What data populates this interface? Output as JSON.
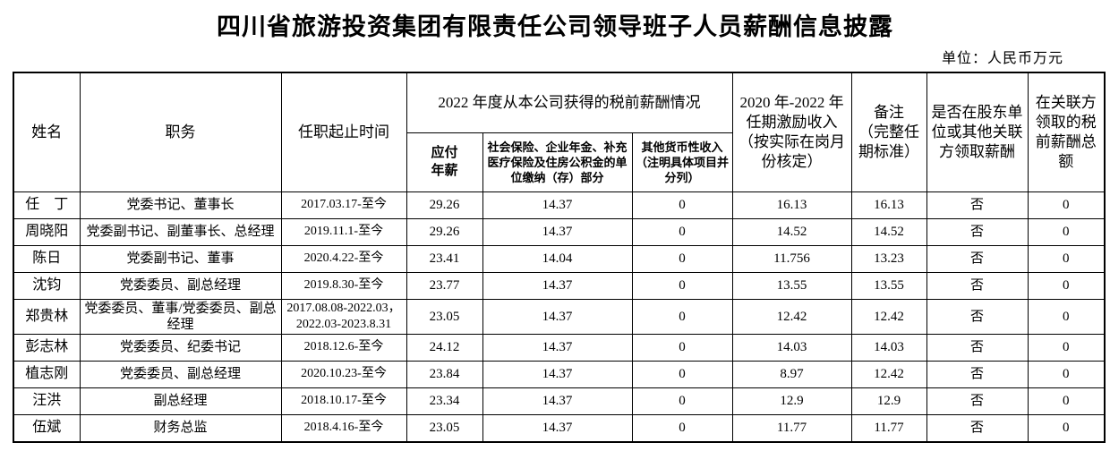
{
  "page": {
    "title": "四川省旅游投资集团有限责任公司领导班子人员薪酬信息披露",
    "unit_note": "单位：人民币万元"
  },
  "table": {
    "headers": {
      "name": "姓名",
      "position": "职务",
      "term": "任职起止时间",
      "salary_2022_group": "2022 年度从本公司获得的税前薪酬情况",
      "payable_salary": "应付\n年薪",
      "insurance": "社会保险、企业年金、补充医疗保险及住房公积金的单位缴纳（存）部分",
      "other_income": "其他货币性收入（注明具体项目并分列）",
      "incentive": "2020 年-2022 年任期激励收入（按实际在岗月份核定）",
      "remark": "备注\n（完整任期标准）",
      "related_party_question": "是否在股东单位或其他关联方领取薪酬",
      "related_party_amount": "在关联方领取的税前薪酬总额"
    },
    "rows": [
      [
        "任　丁",
        "党委书记、董事长",
        "2017.03.17-至今",
        "29.26",
        "14.37",
        "0",
        "16.13",
        "16.13",
        "否",
        "0"
      ],
      [
        "周晓阳",
        "党委副书记、副董事长、总经理",
        "2019.11.1-至今",
        "29.26",
        "14.37",
        "0",
        "14.52",
        "14.52",
        "否",
        "0"
      ],
      [
        "陈日",
        "党委副书记、董事",
        "2020.4.22-至今",
        "23.41",
        "14.04",
        "0",
        "11.756",
        "13.23",
        "否",
        "0"
      ],
      [
        "沈钧",
        "党委委员、副总经理",
        "2019.8.30-至今",
        "23.77",
        "14.37",
        "0",
        "13.55",
        "13.55",
        "否",
        "0"
      ],
      [
        "郑贵林",
        "党委委员、董事/党委委员、副总经理",
        "2017.08.08-2022.03，\n2022.03-2023.8.31",
        "23.05",
        "14.37",
        "0",
        "12.42",
        "12.42",
        "否",
        "0"
      ],
      [
        "彭志林",
        "党委委员、纪委书记",
        "2018.12.6-至今",
        "24.12",
        "14.37",
        "0",
        "14.03",
        "14.03",
        "否",
        "0"
      ],
      [
        "植志刚",
        "党委委员、副总经理",
        "2020.10.23-至今",
        "23.84",
        "14.37",
        "0",
        "8.97",
        "12.42",
        "否",
        "0"
      ],
      [
        "汪洪",
        "副总经理",
        "2018.10.17-至今",
        "23.34",
        "14.37",
        "0",
        "12.9",
        "12.9",
        "否",
        "0"
      ],
      [
        "伍斌",
        "财务总监",
        "2018.4.16-至今",
        "23.05",
        "14.37",
        "0",
        "11.77",
        "11.77",
        "否",
        "0"
      ]
    ]
  }
}
